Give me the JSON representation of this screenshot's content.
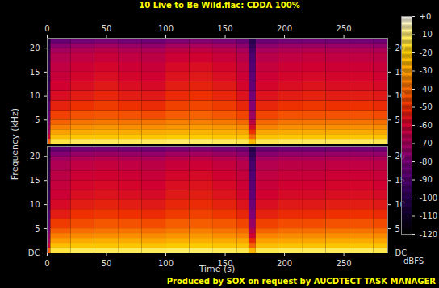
{
  "chart_data": {
    "type": "heatmap",
    "title": "10 Live to Be Wild.flac: CDDA 100%",
    "x_label": "Time (s)",
    "y_label": "Frequency (kHz)",
    "caption": "Produced by SOX on request by AUCDTECT TASK MANAGER",
    "xlim": [
      0,
      287
    ],
    "xticks": [
      0,
      50,
      100,
      150,
      200,
      250
    ],
    "ylim": [
      0,
      22.05
    ],
    "time_edges": [
      0,
      3,
      20,
      40,
      60,
      80,
      100,
      120,
      140,
      160,
      170,
      176,
      195,
      215,
      235,
      255,
      275,
      287
    ],
    "frequency_edges": [
      0,
      1,
      2,
      3,
      4,
      5,
      7,
      9,
      11,
      13,
      15,
      17,
      19,
      20,
      21,
      22.05
    ],
    "channels": [
      {
        "yticks": [
          5,
          10,
          15,
          20
        ],
        "cells": [
          [
            -40,
            -60,
            -70,
            -75,
            -80,
            -85,
            -90,
            -95,
            -98,
            -100,
            -100,
            -102,
            -104,
            -106,
            -108
          ],
          [
            -14,
            -24,
            -30,
            -36,
            -41,
            -47,
            -53,
            -57,
            -60,
            -62,
            -64,
            -67,
            -71,
            -77,
            -85
          ],
          [
            -12,
            -22,
            -28,
            -33,
            -38,
            -44,
            -50,
            -54,
            -57,
            -59,
            -61,
            -64,
            -68,
            -74,
            -82
          ],
          [
            -12,
            -22,
            -27,
            -32,
            -37,
            -43,
            -48,
            -52,
            -55,
            -57,
            -59,
            -62,
            -66,
            -72,
            -80
          ],
          [
            -12,
            -22,
            -28,
            -33,
            -38,
            -44,
            -50,
            -54,
            -57,
            -59,
            -61,
            -64,
            -68,
            -74,
            -82
          ],
          [
            -12,
            -22,
            -28,
            -33,
            -38,
            -45,
            -51,
            -55,
            -58,
            -60,
            -62,
            -65,
            -69,
            -75,
            -83
          ],
          [
            -11,
            -21,
            -27,
            -32,
            -36,
            -42,
            -47,
            -51,
            -54,
            -56,
            -58,
            -61,
            -65,
            -71,
            -79
          ],
          [
            -11,
            -21,
            -26,
            -31,
            -36,
            -41,
            -46,
            -50,
            -53,
            -55,
            -57,
            -60,
            -64,
            -70,
            -78
          ],
          [
            -12,
            -22,
            -27,
            -32,
            -37,
            -43,
            -48,
            -52,
            -55,
            -57,
            -59,
            -62,
            -66,
            -72,
            -80
          ],
          [
            -13,
            -23,
            -29,
            -34,
            -40,
            -46,
            -52,
            -56,
            -59,
            -61,
            -63,
            -66,
            -70,
            -76,
            -84
          ],
          [
            -25,
            -40,
            -50,
            -58,
            -65,
            -72,
            -78,
            -82,
            -85,
            -87,
            -89,
            -91,
            -94,
            -97,
            -100
          ],
          [
            -13,
            -23,
            -29,
            -35,
            -40,
            -46,
            -52,
            -56,
            -59,
            -61,
            -63,
            -66,
            -70,
            -76,
            -84
          ],
          [
            -12,
            -22,
            -28,
            -33,
            -38,
            -44,
            -50,
            -54,
            -57,
            -59,
            -61,
            -64,
            -68,
            -74,
            -82
          ],
          [
            -12,
            -22,
            -28,
            -33,
            -38,
            -44,
            -49,
            -53,
            -56,
            -58,
            -60,
            -63,
            -67,
            -73,
            -81
          ],
          [
            -12,
            -22,
            -28,
            -33,
            -38,
            -44,
            -50,
            -54,
            -57,
            -59,
            -61,
            -64,
            -68,
            -74,
            -82
          ],
          [
            -12,
            -22,
            -28,
            -33,
            -38,
            -44,
            -50,
            -54,
            -57,
            -59,
            -61,
            -64,
            -68,
            -74,
            -82
          ],
          [
            -13,
            -23,
            -29,
            -34,
            -39,
            -45,
            -51,
            -55,
            -58,
            -60,
            -62,
            -65,
            -69,
            -75,
            -83
          ]
        ]
      },
      {
        "yticks": [
          {
            "value": 0,
            "label": "DC"
          },
          5,
          10,
          15,
          20
        ],
        "cells": [
          [
            -42,
            -62,
            -71,
            -76,
            -81,
            -86,
            -91,
            -96,
            -99,
            -101,
            -101,
            -103,
            -105,
            -107,
            -109
          ],
          [
            -14,
            -24,
            -31,
            -36,
            -42,
            -48,
            -54,
            -58,
            -61,
            -63,
            -65,
            -68,
            -72,
            -78,
            -86
          ],
          [
            -12,
            -22,
            -28,
            -34,
            -39,
            -45,
            -50,
            -54,
            -57,
            -59,
            -61,
            -64,
            -68,
            -74,
            -82
          ],
          [
            -12,
            -22,
            -27,
            -33,
            -38,
            -43,
            -49,
            -53,
            -56,
            -58,
            -60,
            -63,
            -67,
            -73,
            -81
          ],
          [
            -12,
            -22,
            -28,
            -33,
            -38,
            -44,
            -50,
            -54,
            -57,
            -59,
            -61,
            -64,
            -68,
            -74,
            -82
          ],
          [
            -12,
            -23,
            -29,
            -34,
            -39,
            -45,
            -51,
            -55,
            -58,
            -60,
            -62,
            -65,
            -69,
            -75,
            -83
          ],
          [
            -11,
            -21,
            -27,
            -32,
            -37,
            -42,
            -48,
            -52,
            -55,
            -57,
            -59,
            -62,
            -66,
            -72,
            -80
          ],
          [
            -11,
            -21,
            -27,
            -32,
            -36,
            -42,
            -47,
            -51,
            -54,
            -56,
            -58,
            -61,
            -65,
            -71,
            -79
          ],
          [
            -12,
            -22,
            -28,
            -33,
            -38,
            -43,
            -49,
            -53,
            -56,
            -58,
            -60,
            -63,
            -67,
            -73,
            -81
          ],
          [
            -13,
            -23,
            -29,
            -35,
            -40,
            -46,
            -52,
            -56,
            -59,
            -61,
            -63,
            -66,
            -70,
            -76,
            -84
          ],
          [
            -26,
            -41,
            -52,
            -60,
            -66,
            -73,
            -79,
            -83,
            -86,
            -88,
            -90,
            -92,
            -95,
            -98,
            -101
          ],
          [
            -13,
            -24,
            -30,
            -35,
            -41,
            -47,
            -53,
            -57,
            -60,
            -62,
            -64,
            -67,
            -71,
            -77,
            -85
          ],
          [
            -12,
            -23,
            -29,
            -34,
            -39,
            -45,
            -51,
            -55,
            -58,
            -60,
            -62,
            -65,
            -69,
            -75,
            -83
          ],
          [
            -12,
            -23,
            -29,
            -34,
            -39,
            -45,
            -51,
            -55,
            -58,
            -60,
            -62,
            -65,
            -69,
            -75,
            -83
          ],
          [
            -12,
            -22,
            -28,
            -33,
            -38,
            -44,
            -50,
            -54,
            -57,
            -59,
            -61,
            -64,
            -68,
            -74,
            -82
          ],
          [
            -12,
            -22,
            -28,
            -33,
            -38,
            -44,
            -50,
            -54,
            -57,
            -59,
            -61,
            -64,
            -68,
            -74,
            -82
          ],
          [
            -13,
            -23,
            -29,
            -34,
            -39,
            -45,
            -51,
            -55,
            -58,
            -60,
            -62,
            -65,
            -69,
            -75,
            -83
          ]
        ]
      }
    ],
    "colorbar": {
      "label": "dBFS",
      "range": [
        -120,
        0
      ],
      "ticks": [
        {
          "value": 0,
          "label": "+0"
        },
        -10,
        -20,
        -30,
        -40,
        -50,
        -60,
        -70,
        -80,
        -90,
        -100,
        -110,
        -120
      ]
    }
  }
}
